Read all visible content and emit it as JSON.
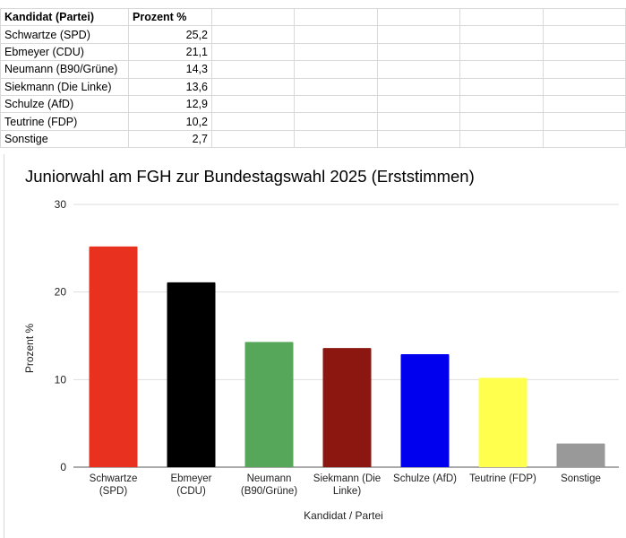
{
  "table": {
    "headers": [
      "Kandidat (Partei)",
      "Prozent %"
    ],
    "rows": [
      [
        "Schwartze (SPD)",
        "25,2"
      ],
      [
        "Ebmeyer (CDU)",
        "21,1"
      ],
      [
        "Neumann (B90/Grüne)",
        "14,3"
      ],
      [
        "Siekmann (Die Linke)",
        "13,6"
      ],
      [
        "Schulze (AfD)",
        "12,9"
      ],
      [
        "Teutrine (FDP)",
        "10,2"
      ],
      [
        "Sonstige",
        "2,7"
      ]
    ]
  },
  "chart_data": {
    "type": "bar",
    "title": "Juniorwahl am FGH zur Bundestagswahl 2025 (Erststimmen)",
    "xlabel": "Kandidat / Partei",
    "ylabel": "Prozent %",
    "ylim": [
      0,
      30
    ],
    "yticks": [
      "0",
      "10",
      "20",
      "30"
    ],
    "grid": true,
    "categories": [
      [
        "Schwartze",
        "(SPD)"
      ],
      [
        "Ebmeyer",
        "(CDU)"
      ],
      [
        "Neumann",
        "(B90/Grüne)"
      ],
      [
        "Siekmann (Die",
        "Linke)"
      ],
      [
        "Schulze (AfD)"
      ],
      [
        "Teutrine (FDP)"
      ],
      [
        "Sonstige"
      ]
    ],
    "values": [
      25.2,
      21.1,
      14.3,
      13.6,
      12.9,
      10.2,
      2.7
    ],
    "colors": [
      "#e8311f",
      "#000000",
      "#57a75a",
      "#8b1710",
      "#0000ee",
      "#ffff4d",
      "#999999"
    ]
  }
}
